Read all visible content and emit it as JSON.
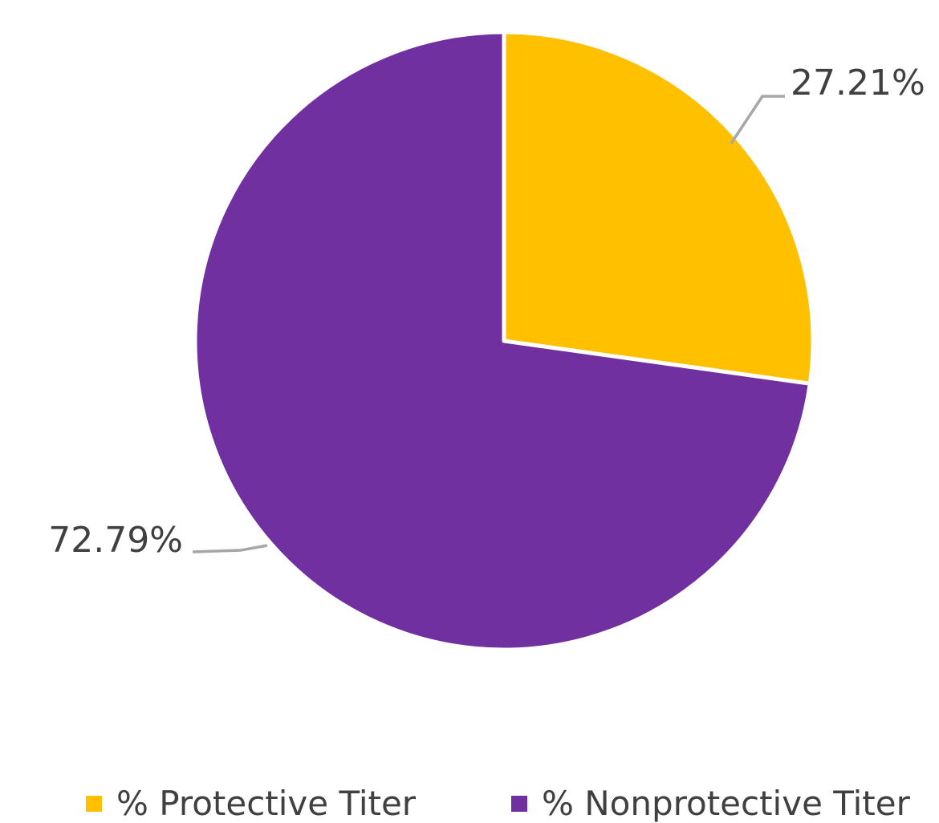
{
  "chart_data": {
    "type": "pie",
    "title": "",
    "start_angle_deg": 0,
    "direction": "clockwise",
    "slices": [
      {
        "name": "% Protective Titer",
        "value": 27.21,
        "label": "27.21%",
        "color": "#FFC000"
      },
      {
        "name": "% Nonprotective Titer",
        "value": 72.79,
        "label": "72.79%",
        "color": "#7030A0"
      }
    ],
    "legend": {
      "position": "bottom"
    },
    "leader_line_color": "#A6A6A6",
    "slice_border_color": "#FFFFFF"
  }
}
